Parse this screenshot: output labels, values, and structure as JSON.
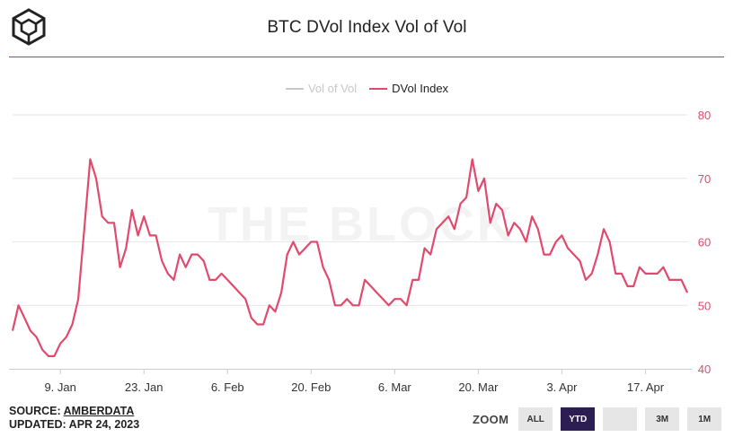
{
  "header": {
    "title": "BTC DVol Index Vol of Vol",
    "logo_icon": "cube-logo-icon"
  },
  "watermark": "THE BLOCK",
  "legend": [
    {
      "label": "Vol of Vol",
      "state": "hidden",
      "color": "#c8c8c8"
    },
    {
      "label": "DVol Index",
      "state": "visible",
      "color": "#e14a6d"
    }
  ],
  "footer": {
    "source_prefix": "SOURCE: ",
    "source_link": "AMBERDATA",
    "updated": "UPDATED: APR 24, 2023"
  },
  "zoom": {
    "label": "ZOOM",
    "buttons": [
      {
        "label": "ALL",
        "active": false
      },
      {
        "label": "YTD",
        "active": true
      },
      {
        "label": "",
        "active": false
      },
      {
        "label": "3M",
        "active": false
      },
      {
        "label": "1M",
        "active": false
      }
    ]
  },
  "chart_data": {
    "type": "line",
    "title": "BTC DVol Index Vol of Vol",
    "xlabel": "",
    "ylabel": "",
    "ylim": [
      40,
      80
    ],
    "y_ticks": [
      "40",
      "50",
      "60",
      "70",
      "80"
    ],
    "x_ticks": [
      "9. Jan",
      "23. Jan",
      "6. Feb",
      "20. Feb",
      "6. Mar",
      "20. Mar",
      "3. Apr",
      "17. Apr"
    ],
    "x_start": "2023-01-01",
    "x_end": "2023-04-24",
    "grid": true,
    "legend_position": "top-center",
    "series": [
      {
        "name": "DVol Index",
        "color": "#e14a6d",
        "visible": true,
        "points": [
          [
            "2023-01-01",
            46
          ],
          [
            "2023-01-02",
            50
          ],
          [
            "2023-01-03",
            48
          ],
          [
            "2023-01-04",
            46
          ],
          [
            "2023-01-05",
            45
          ],
          [
            "2023-01-06",
            43
          ],
          [
            "2023-01-07",
            42
          ],
          [
            "2023-01-08",
            42
          ],
          [
            "2023-01-09",
            44
          ],
          [
            "2023-01-10",
            45
          ],
          [
            "2023-01-11",
            47
          ],
          [
            "2023-01-12",
            51
          ],
          [
            "2023-01-13",
            62
          ],
          [
            "2023-01-14",
            73
          ],
          [
            "2023-01-15",
            70
          ],
          [
            "2023-01-16",
            64
          ],
          [
            "2023-01-17",
            63
          ],
          [
            "2023-01-18",
            63
          ],
          [
            "2023-01-19",
            56
          ],
          [
            "2023-01-20",
            59
          ],
          [
            "2023-01-21",
            65
          ],
          [
            "2023-01-22",
            61
          ],
          [
            "2023-01-23",
            64
          ],
          [
            "2023-01-24",
            61
          ],
          [
            "2023-01-25",
            61
          ],
          [
            "2023-01-26",
            57
          ],
          [
            "2023-01-27",
            55
          ],
          [
            "2023-01-28",
            54
          ],
          [
            "2023-01-29",
            58
          ],
          [
            "2023-01-30",
            56
          ],
          [
            "2023-01-31",
            58
          ],
          [
            "2023-02-01",
            58
          ],
          [
            "2023-02-02",
            57
          ],
          [
            "2023-02-03",
            54
          ],
          [
            "2023-02-04",
            54
          ],
          [
            "2023-02-05",
            55
          ],
          [
            "2023-02-06",
            54
          ],
          [
            "2023-02-07",
            53
          ],
          [
            "2023-02-08",
            52
          ],
          [
            "2023-02-09",
            51
          ],
          [
            "2023-02-10",
            48
          ],
          [
            "2023-02-11",
            47
          ],
          [
            "2023-02-12",
            47
          ],
          [
            "2023-02-13",
            50
          ],
          [
            "2023-02-14",
            49
          ],
          [
            "2023-02-15",
            52
          ],
          [
            "2023-02-16",
            58
          ],
          [
            "2023-02-17",
            60
          ],
          [
            "2023-02-18",
            58
          ],
          [
            "2023-02-19",
            59
          ],
          [
            "2023-02-20",
            60
          ],
          [
            "2023-02-21",
            60
          ],
          [
            "2023-02-22",
            56
          ],
          [
            "2023-02-23",
            54
          ],
          [
            "2023-02-24",
            50
          ],
          [
            "2023-02-25",
            50
          ],
          [
            "2023-02-26",
            51
          ],
          [
            "2023-02-27",
            50
          ],
          [
            "2023-02-28",
            50
          ],
          [
            "2023-03-01",
            54
          ],
          [
            "2023-03-02",
            53
          ],
          [
            "2023-03-03",
            52
          ],
          [
            "2023-03-04",
            51
          ],
          [
            "2023-03-05",
            50
          ],
          [
            "2023-03-06",
            51
          ],
          [
            "2023-03-07",
            51
          ],
          [
            "2023-03-08",
            50
          ],
          [
            "2023-03-09",
            54
          ],
          [
            "2023-03-10",
            54
          ],
          [
            "2023-03-11",
            59
          ],
          [
            "2023-03-12",
            58
          ],
          [
            "2023-03-13",
            62
          ],
          [
            "2023-03-14",
            63
          ],
          [
            "2023-03-15",
            64
          ],
          [
            "2023-03-16",
            62
          ],
          [
            "2023-03-17",
            66
          ],
          [
            "2023-03-18",
            67
          ],
          [
            "2023-03-19",
            73
          ],
          [
            "2023-03-20",
            68
          ],
          [
            "2023-03-21",
            70
          ],
          [
            "2023-03-22",
            63
          ],
          [
            "2023-03-23",
            66
          ],
          [
            "2023-03-24",
            65
          ],
          [
            "2023-03-25",
            61
          ],
          [
            "2023-03-26",
            63
          ],
          [
            "2023-03-27",
            62
          ],
          [
            "2023-03-28",
            60
          ],
          [
            "2023-03-29",
            64
          ],
          [
            "2023-03-30",
            62
          ],
          [
            "2023-03-31",
            58
          ],
          [
            "2023-04-01",
            58
          ],
          [
            "2023-04-02",
            60
          ],
          [
            "2023-04-03",
            61
          ],
          [
            "2023-04-04",
            59
          ],
          [
            "2023-04-05",
            58
          ],
          [
            "2023-04-06",
            57
          ],
          [
            "2023-04-07",
            54
          ],
          [
            "2023-04-08",
            55
          ],
          [
            "2023-04-09",
            58
          ],
          [
            "2023-04-10",
            62
          ],
          [
            "2023-04-11",
            60
          ],
          [
            "2023-04-12",
            55
          ],
          [
            "2023-04-13",
            55
          ],
          [
            "2023-04-14",
            53
          ],
          [
            "2023-04-15",
            53
          ],
          [
            "2023-04-16",
            56
          ],
          [
            "2023-04-17",
            55
          ],
          [
            "2023-04-18",
            55
          ],
          [
            "2023-04-19",
            55
          ],
          [
            "2023-04-20",
            56
          ],
          [
            "2023-04-21",
            54
          ],
          [
            "2023-04-22",
            54
          ],
          [
            "2023-04-23",
            54
          ],
          [
            "2023-04-24",
            52
          ]
        ]
      },
      {
        "name": "Vol of Vol",
        "color": "#c8c8c8",
        "visible": false,
        "points": []
      }
    ]
  }
}
